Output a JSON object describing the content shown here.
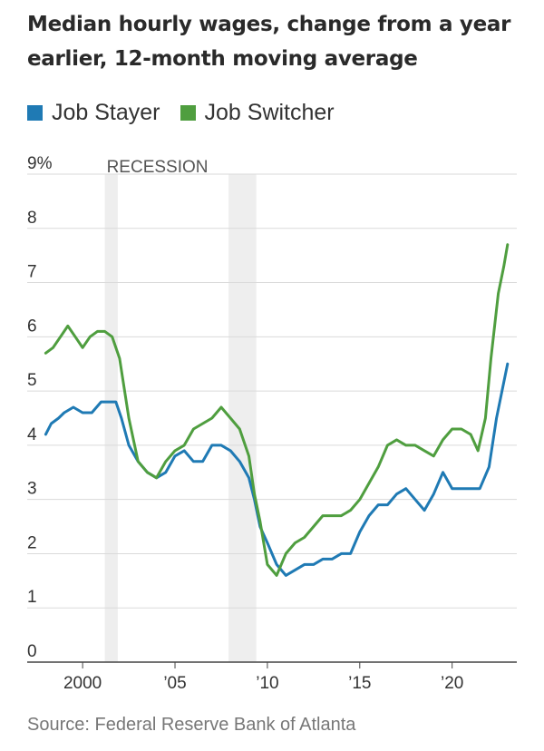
{
  "colors": {
    "job_stayer": "#1f7ab4",
    "job_switcher": "#4f9e3f",
    "recession": "#eeeeee",
    "grid": "#dadada",
    "axis": "#444444",
    "text": "#333333"
  },
  "chart_data": {
    "type": "line",
    "title": "Median hourly wages, change from a year earlier, 12-month moving average",
    "source": "Source: Federal Reserve Bank of Atlanta",
    "xlabel": "",
    "ylabel": "",
    "xlim": [
      1997,
      2023.5
    ],
    "ylim": [
      0,
      9
    ],
    "y_ticks": [
      0,
      1,
      2,
      3,
      4,
      5,
      6,
      7,
      8,
      9
    ],
    "y_tick_labels": [
      "0",
      "1",
      "2",
      "3",
      "4",
      "5",
      "6",
      "7",
      "8",
      "9%"
    ],
    "x_ticks": [
      2000,
      2005,
      2010,
      2015,
      2020
    ],
    "x_tick_labels": [
      "2000",
      "’05",
      "’10",
      "’15",
      "’20"
    ],
    "grid": true,
    "legend_position": "top-left",
    "recession_label": "RECESSION",
    "recessions": [
      [
        2001.2,
        2001.9
      ],
      [
        2007.9,
        2009.4
      ]
    ],
    "series": [
      {
        "name": "Job Stayer",
        "color": "#1f7ab4",
        "points": [
          [
            1998.0,
            4.2
          ],
          [
            1998.3,
            4.4
          ],
          [
            1998.7,
            4.5
          ],
          [
            1999.0,
            4.6
          ],
          [
            1999.5,
            4.7
          ],
          [
            2000.0,
            4.6
          ],
          [
            2000.5,
            4.6
          ],
          [
            2001.0,
            4.8
          ],
          [
            2001.5,
            4.8
          ],
          [
            2001.8,
            4.8
          ],
          [
            2002.1,
            4.5
          ],
          [
            2002.5,
            4.0
          ],
          [
            2003.0,
            3.7
          ],
          [
            2003.5,
            3.5
          ],
          [
            2004.0,
            3.4
          ],
          [
            2004.5,
            3.5
          ],
          [
            2005.0,
            3.8
          ],
          [
            2005.5,
            3.9
          ],
          [
            2006.0,
            3.7
          ],
          [
            2006.5,
            3.7
          ],
          [
            2007.0,
            4.0
          ],
          [
            2007.5,
            4.0
          ],
          [
            2008.0,
            3.9
          ],
          [
            2008.5,
            3.7
          ],
          [
            2009.0,
            3.4
          ],
          [
            2009.3,
            3.0
          ],
          [
            2009.6,
            2.5
          ],
          [
            2010.0,
            2.2
          ],
          [
            2010.5,
            1.8
          ],
          [
            2011.0,
            1.6
          ],
          [
            2011.5,
            1.7
          ],
          [
            2012.0,
            1.8
          ],
          [
            2012.5,
            1.8
          ],
          [
            2013.0,
            1.9
          ],
          [
            2013.5,
            1.9
          ],
          [
            2014.0,
            2.0
          ],
          [
            2014.5,
            2.0
          ],
          [
            2015.0,
            2.4
          ],
          [
            2015.5,
            2.7
          ],
          [
            2016.0,
            2.9
          ],
          [
            2016.5,
            2.9
          ],
          [
            2017.0,
            3.1
          ],
          [
            2017.5,
            3.2
          ],
          [
            2018.0,
            3.0
          ],
          [
            2018.5,
            2.8
          ],
          [
            2019.0,
            3.1
          ],
          [
            2019.5,
            3.5
          ],
          [
            2020.0,
            3.2
          ],
          [
            2020.5,
            3.2
          ],
          [
            2021.0,
            3.2
          ],
          [
            2021.5,
            3.2
          ],
          [
            2022.0,
            3.6
          ],
          [
            2022.4,
            4.5
          ],
          [
            2022.7,
            5.0
          ],
          [
            2023.0,
            5.5
          ]
        ]
      },
      {
        "name": "Job Switcher",
        "color": "#4f9e3f",
        "points": [
          [
            1998.0,
            5.7
          ],
          [
            1998.4,
            5.8
          ],
          [
            1998.8,
            6.0
          ],
          [
            1999.2,
            6.2
          ],
          [
            1999.6,
            6.0
          ],
          [
            2000.0,
            5.8
          ],
          [
            2000.4,
            6.0
          ],
          [
            2000.8,
            6.1
          ],
          [
            2001.2,
            6.1
          ],
          [
            2001.6,
            6.0
          ],
          [
            2002.0,
            5.6
          ],
          [
            2002.5,
            4.5
          ],
          [
            2003.0,
            3.7
          ],
          [
            2003.5,
            3.5
          ],
          [
            2004.0,
            3.4
          ],
          [
            2004.5,
            3.7
          ],
          [
            2005.0,
            3.9
          ],
          [
            2005.5,
            4.0
          ],
          [
            2006.0,
            4.3
          ],
          [
            2006.5,
            4.4
          ],
          [
            2007.0,
            4.5
          ],
          [
            2007.5,
            4.7
          ],
          [
            2008.0,
            4.5
          ],
          [
            2008.5,
            4.3
          ],
          [
            2009.0,
            3.8
          ],
          [
            2009.3,
            3.1
          ],
          [
            2009.6,
            2.6
          ],
          [
            2010.0,
            1.8
          ],
          [
            2010.5,
            1.6
          ],
          [
            2011.0,
            2.0
          ],
          [
            2011.5,
            2.2
          ],
          [
            2012.0,
            2.3
          ],
          [
            2012.5,
            2.5
          ],
          [
            2013.0,
            2.7
          ],
          [
            2013.5,
            2.7
          ],
          [
            2014.0,
            2.7
          ],
          [
            2014.5,
            2.8
          ],
          [
            2015.0,
            3.0
          ],
          [
            2015.5,
            3.3
          ],
          [
            2016.0,
            3.6
          ],
          [
            2016.5,
            4.0
          ],
          [
            2017.0,
            4.1
          ],
          [
            2017.5,
            4.0
          ],
          [
            2018.0,
            4.0
          ],
          [
            2018.5,
            3.9
          ],
          [
            2019.0,
            3.8
          ],
          [
            2019.5,
            4.1
          ],
          [
            2020.0,
            4.3
          ],
          [
            2020.5,
            4.3
          ],
          [
            2021.0,
            4.2
          ],
          [
            2021.4,
            3.9
          ],
          [
            2021.8,
            4.5
          ],
          [
            2022.1,
            5.6
          ],
          [
            2022.5,
            6.8
          ],
          [
            2022.8,
            7.3
          ],
          [
            2023.0,
            7.7
          ]
        ]
      }
    ]
  }
}
